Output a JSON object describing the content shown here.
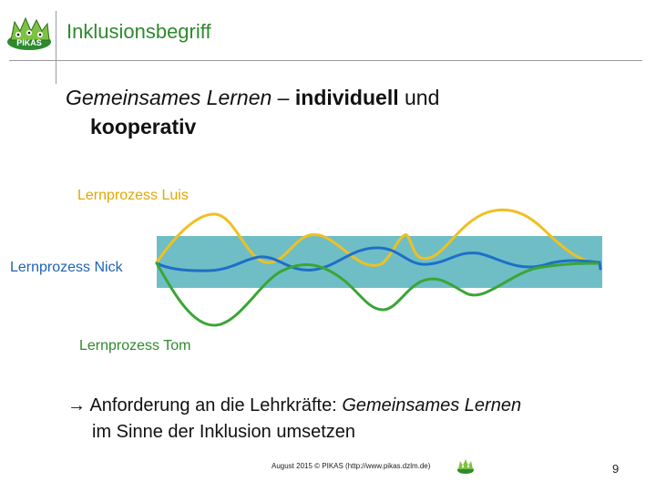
{
  "header": {
    "title": "Inklusionsbegriff",
    "logo_text": "PIKAS"
  },
  "subtitle": {
    "line1_italic": "Gemeinsames Lernen",
    "line1_dash": " – ",
    "line1_bold": "individuell",
    "line1_rest": " und",
    "line2_bold": "kooperativ"
  },
  "diagram": {
    "labels": {
      "luis": "Lernprozess Luis",
      "nick": "Lernprozess Nick",
      "tom": "Lernprozess Tom"
    },
    "colors": {
      "luis": "#f0c020",
      "nick": "#1e6fc8",
      "tom": "#3aa635",
      "band": "#6fbec6"
    }
  },
  "conclusion": {
    "arrow": "→",
    "line1_plain": " Anforderung an die Lehrkräfte: ",
    "line1_italic": "Gemeinsames Lernen",
    "line2": "im Sinne der Inklusion umsetzen"
  },
  "footer": {
    "text": "August 2015 © PIKAS (http://www.pikas.dzlm.de)",
    "page_number": "9"
  }
}
